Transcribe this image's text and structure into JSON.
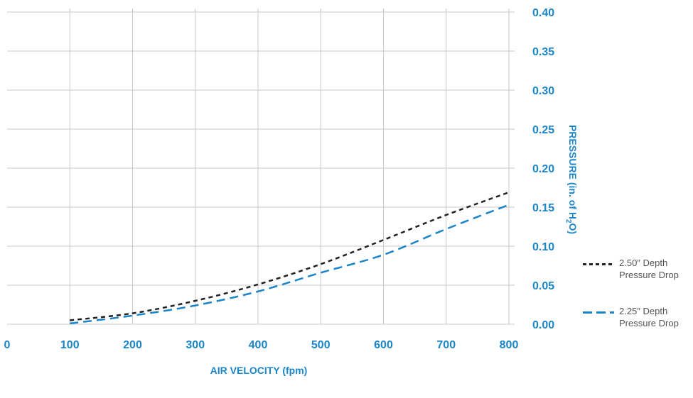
{
  "chart_data": {
    "type": "line",
    "xlabel": "AIR VELOCITY (fpm)",
    "ylabel": "PRESSURE (in. of H",
    "ylabel_sub": "2",
    "ylabel_end": "O)",
    "xlim": [
      0,
      800
    ],
    "ylim": [
      0,
      0.4
    ],
    "x_ticks": [
      "0",
      "100",
      "200",
      "300",
      "400",
      "500",
      "600",
      "700",
      "800"
    ],
    "y_ticks": [
      "0.00",
      "0.05",
      "0.10",
      "0.15",
      "0.20",
      "0.25",
      "0.30",
      "0.35",
      "0.40"
    ],
    "grid": true,
    "legend_position": "right",
    "x": [
      100,
      200,
      300,
      400,
      500,
      600,
      700,
      800
    ],
    "series": [
      {
        "name_line1": "2.50″ Depth",
        "name_line2": "Pressure Drop",
        "color": "#222222",
        "dash": "short",
        "values": [
          0.005,
          0.014,
          0.03,
          0.051,
          0.077,
          0.108,
          0.14,
          0.169
        ]
      },
      {
        "name_line1": "2.25″ Depth",
        "name_line2": "Pressure Drop",
        "color": "#1a85c8",
        "dash": "long",
        "values": [
          0.001,
          0.011,
          0.024,
          0.042,
          0.066,
          0.089,
          0.122,
          0.153
        ]
      }
    ]
  }
}
